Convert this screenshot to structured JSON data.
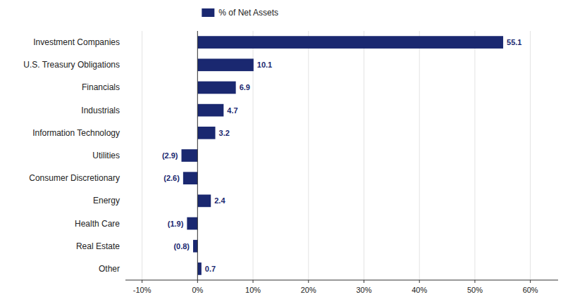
{
  "chart_data": {
    "type": "bar",
    "orientation": "horizontal",
    "categories": [
      "Investment Companies",
      "U.S. Treasury Obligations",
      "Financials",
      "Industrials",
      "Information Technology",
      "Utilities",
      "Consumer Discretionary",
      "Energy",
      "Health Care",
      "Real Estate",
      "Other"
    ],
    "series": [
      {
        "name": "% of Net Assets",
        "color": "#1a2870",
        "values": [
          55.1,
          10.1,
          6.9,
          4.7,
          3.2,
          -2.9,
          -2.6,
          2.4,
          -1.9,
          -0.8,
          0.7
        ],
        "value_labels": [
          "55.1",
          "10.1",
          "6.9",
          "4.7",
          "3.2",
          "(2.9)",
          "(2.6)",
          "2.4",
          "(1.9)",
          "(0.8)",
          "0.7"
        ]
      }
    ],
    "xlim": [
      -13,
      65
    ],
    "xticks": [
      {
        "value": -10,
        "label": "-10%"
      },
      {
        "value": 0,
        "label": "0%"
      },
      {
        "value": 10,
        "label": "10%"
      },
      {
        "value": 20,
        "label": "20%"
      },
      {
        "value": 30,
        "label": "30%"
      },
      {
        "value": 40,
        "label": "40%"
      },
      {
        "value": 50,
        "label": "50%"
      },
      {
        "value": 60,
        "label": "60%"
      }
    ],
    "grid": true,
    "legend": "top",
    "data_labels": true
  }
}
